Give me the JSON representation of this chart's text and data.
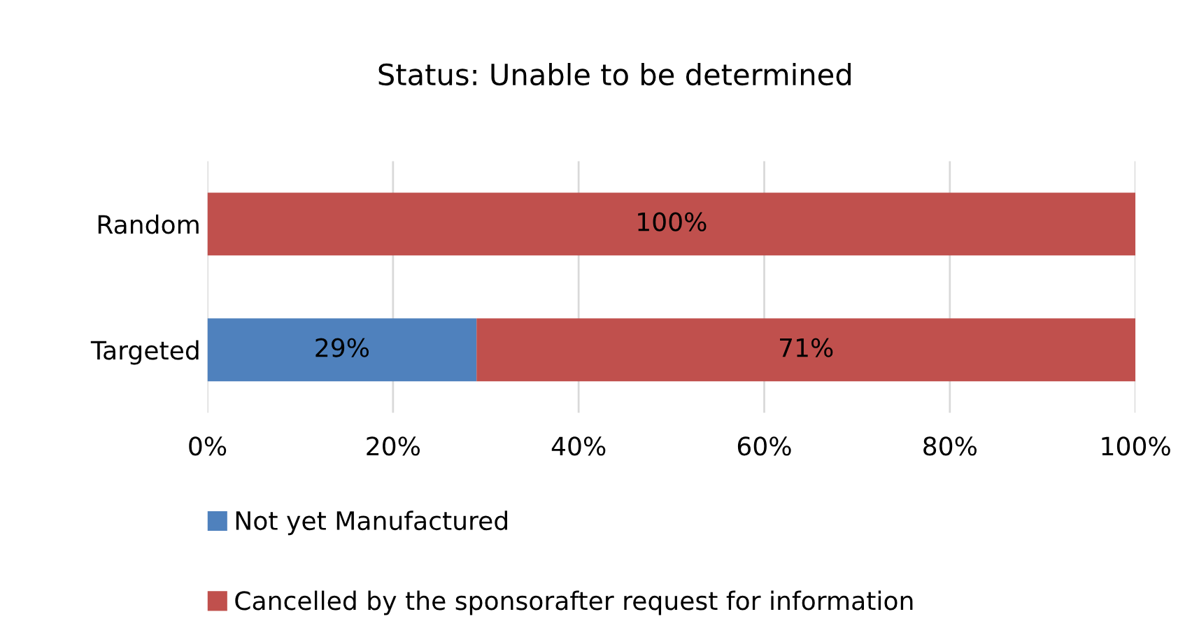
{
  "chart_data": {
    "type": "bar",
    "title": "Status: Unable to be determined",
    "orientation": "horizontal",
    "stacked": true,
    "categories": [
      "Random",
      "Targeted"
    ],
    "series": [
      {
        "name": "Not yet Manufactured",
        "color": "#4f81bd",
        "values": [
          0,
          29
        ],
        "value_labels": [
          null,
          "29%"
        ]
      },
      {
        "name": "Cancelled by the sponsorafter request for information",
        "color": "#c0504d",
        "values": [
          100,
          71
        ],
        "value_labels": [
          "100%",
          "71%"
        ]
      }
    ],
    "xlim": [
      0,
      100
    ],
    "xticks": [
      {
        "value": 0,
        "label": "0%"
      },
      {
        "value": 20,
        "label": "20%"
      },
      {
        "value": 40,
        "label": "40%"
      },
      {
        "value": 60,
        "label": "60%"
      },
      {
        "value": 80,
        "label": "80%"
      },
      {
        "value": 100,
        "label": "100%"
      }
    ],
    "grid": "x",
    "legend": "bottom"
  }
}
